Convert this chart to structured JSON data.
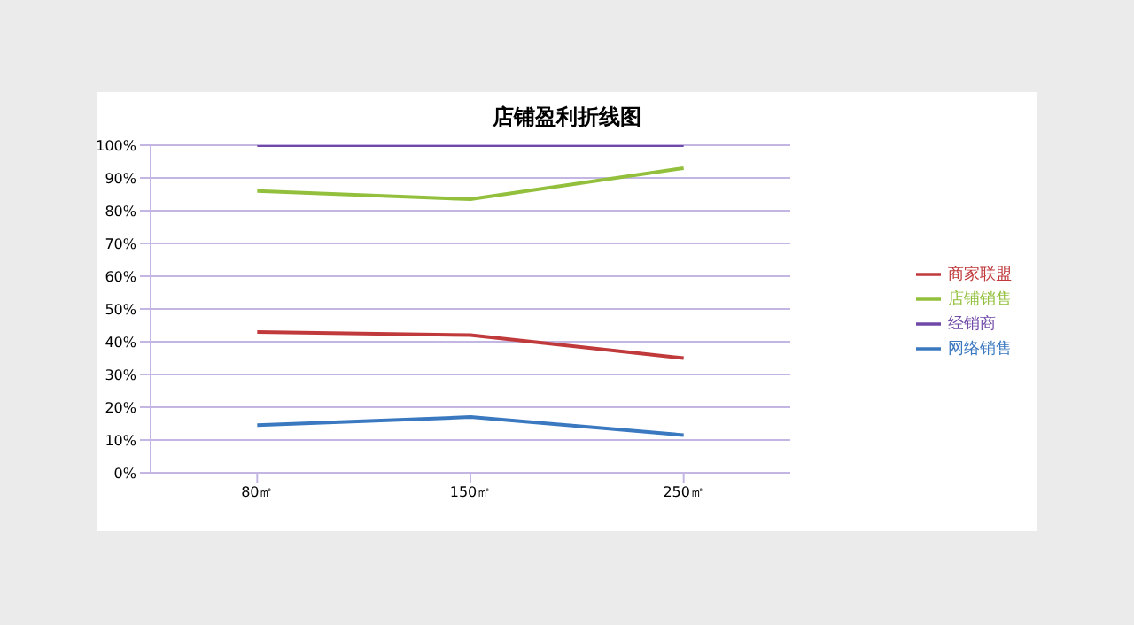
{
  "chart_data": {
    "type": "line",
    "title": "店铺盈利折线图",
    "categories": [
      "80㎡",
      "150㎡",
      "250㎡"
    ],
    "series": [
      {
        "name": "经销商",
        "color": "#7048a8",
        "values": [
          100,
          100,
          100
        ]
      },
      {
        "name": "店铺销售",
        "color": "#92c03c",
        "values": [
          86,
          83.5,
          93
        ]
      },
      {
        "name": "商家联盟",
        "color": "#c0393b",
        "values": [
          43,
          42,
          35
        ]
      },
      {
        "name": "网络销售",
        "color": "#3a78c0",
        "values": [
          14.5,
          17,
          11.5
        ]
      }
    ],
    "ylim": [
      0,
      100
    ],
    "yticks": [
      {
        "value": 0,
        "label": "0%"
      },
      {
        "value": 10,
        "label": "10%"
      },
      {
        "value": 20,
        "label": "20%"
      },
      {
        "value": 30,
        "label": "30%"
      },
      {
        "value": 40,
        "label": "40%"
      },
      {
        "value": 50,
        "label": "50%"
      },
      {
        "value": 60,
        "label": "60%"
      },
      {
        "value": 70,
        "label": "70%"
      },
      {
        "value": 80,
        "label": "80%"
      },
      {
        "value": 90,
        "label": "90%"
      },
      {
        "value": 100,
        "label": "100%"
      }
    ],
    "grid": "y",
    "legend": "right",
    "marker": "none",
    "line_style": "solid"
  }
}
